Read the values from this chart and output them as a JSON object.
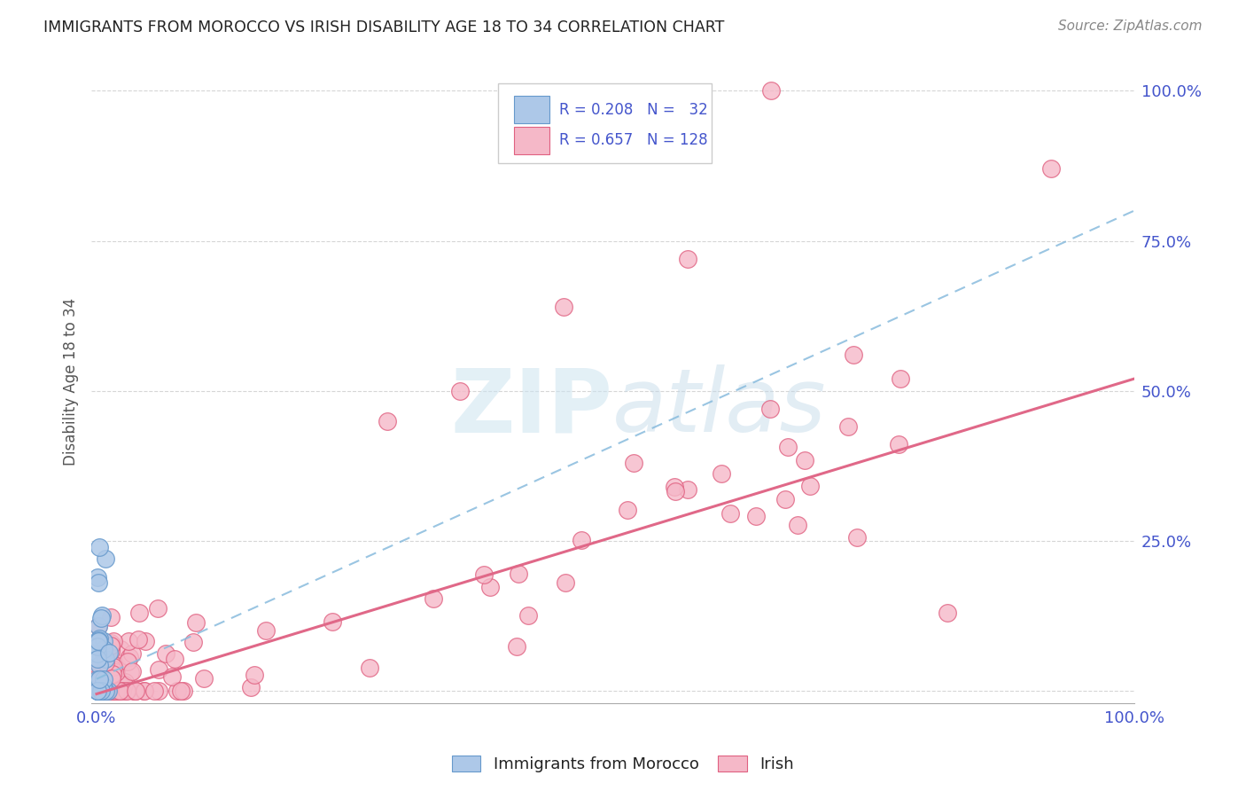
{
  "title": "IMMIGRANTS FROM MOROCCO VS IRISH DISABILITY AGE 18 TO 34 CORRELATION CHART",
  "source": "Source: ZipAtlas.com",
  "ylabel": "Disability Age 18 to 34",
  "legend_label1": "Immigrants from Morocco",
  "legend_label2": "Irish",
  "R1": 0.208,
  "N1": 32,
  "R2": 0.657,
  "N2": 128,
  "color_morocco_fill": "#adc8e8",
  "color_morocco_edge": "#6699cc",
  "color_irish_fill": "#f5b8c8",
  "color_irish_edge": "#e06080",
  "color_line_morocco": "#88bbdd",
  "color_line_irish": "#e06888",
  "background_color": "#ffffff",
  "grid_color": "#cccccc",
  "axis_label_color": "#4455cc",
  "title_color": "#222222",
  "source_color": "#888888",
  "ylabel_color": "#555555",
  "watermark_color": "#d8eef8",
  "irish_line_intercept": -0.005,
  "irish_line_slope": 0.525,
  "morocco_line_intercept": 0.02,
  "morocco_line_slope": 0.78
}
